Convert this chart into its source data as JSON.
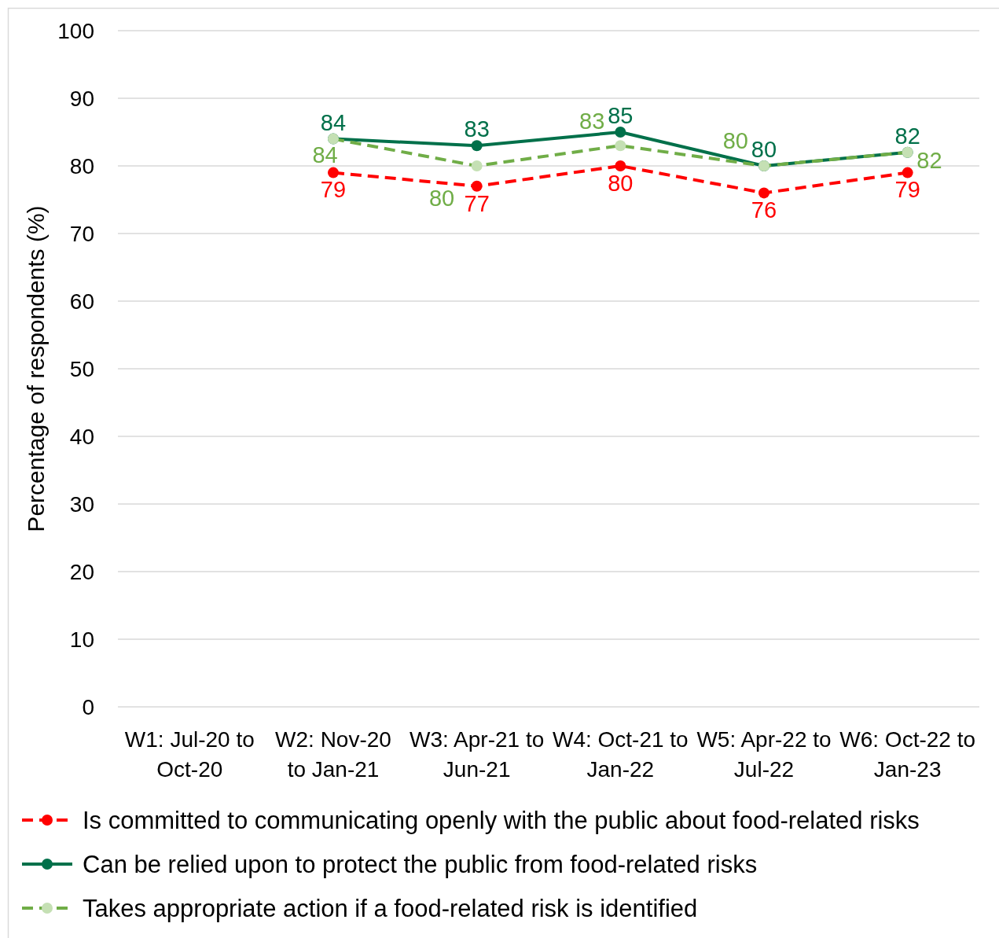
{
  "chart_data": {
    "type": "line",
    "ylabel": "Percentage of respondents (%)",
    "categories": [
      "W1: Jul-20 to Oct-20",
      "W2: Nov-20 to Jan-21",
      "W3: Apr-21 to Jun-21",
      "W4: Oct-21 to Jan-22",
      "W5: Apr-22 to Jul-22",
      "W6: Oct-22 to Jan-23"
    ],
    "series": [
      {
        "name": "Is committed to communicating openly with the public about food-related risks",
        "color": "#ff0000",
        "line_style": "dashed",
        "values": [
          null,
          79,
          77,
          80,
          76,
          79
        ]
      },
      {
        "name": "Can be relied upon to protect the public from food-related risks",
        "color": "#00704a",
        "line_style": "solid",
        "values": [
          null,
          84,
          83,
          85,
          80,
          82
        ]
      },
      {
        "name": "Takes appropriate action if a food-related risk is identified",
        "color": "#70ad47",
        "colors": [
          "#c5e0b4",
          "#c5e0b4",
          "#c5e0b4",
          "#c5e0b4",
          "#c5e0b4",
          "#c5e0b4"
        ],
        "line_style": "dashed",
        "values": [
          null,
          84,
          80,
          83,
          80,
          82
        ]
      }
    ],
    "ylim": [
      0,
      100
    ],
    "yticks": [
      0,
      10,
      20,
      30,
      40,
      50,
      60,
      70,
      80,
      90,
      100
    ],
    "grid": "y",
    "legend": "bottom",
    "marker": "circle",
    "data_labels": true
  }
}
